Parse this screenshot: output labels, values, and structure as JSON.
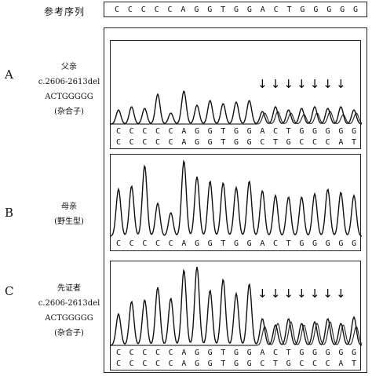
{
  "reference": {
    "label": "参考序列",
    "sequence": [
      "C",
      "C",
      "C",
      "C",
      "C",
      "A",
      "G",
      "G",
      "T",
      "G",
      "G",
      "A",
      "C",
      "T",
      "G",
      "G",
      "G",
      "G",
      "G"
    ]
  },
  "panels": [
    {
      "letter": "A",
      "title": "父亲",
      "variant": "c.2606-2613del",
      "deleted": "ACTGGGGG",
      "note": "(杂合子)",
      "arrow": "↓",
      "seq1": [
        "C",
        "C",
        "C",
        "C",
        "C",
        "A",
        "G",
        "G",
        "T",
        "G",
        "G",
        "A",
        "C",
        "T",
        "G",
        "G",
        "G",
        "G",
        "G"
      ],
      "seq2": [
        "C",
        "C",
        "C",
        "C",
        "C",
        "A",
        "G",
        "G",
        "T",
        "G",
        "G",
        "C",
        "T",
        "G",
        "C",
        "C",
        "C",
        "A",
        "T"
      ]
    },
    {
      "letter": "B",
      "title": "母亲",
      "note": "(野生型)",
      "seq1": [
        "C",
        "C",
        "C",
        "C",
        "C",
        "A",
        "G",
        "G",
        "T",
        "G",
        "G",
        "A",
        "C",
        "T",
        "G",
        "G",
        "G",
        "G",
        "G"
      ]
    },
    {
      "letter": "C",
      "title": "先证者",
      "variant": "c.2606-2613del",
      "deleted": "ACTGGGGG",
      "note": "(杂合子)",
      "arrow": "↓",
      "seq1": [
        "C",
        "C",
        "C",
        "C",
        "C",
        "A",
        "G",
        "G",
        "T",
        "G",
        "G",
        "A",
        "C",
        "T",
        "G",
        "G",
        "G",
        "G",
        "G"
      ],
      "seq2": [
        "C",
        "C",
        "C",
        "C",
        "C",
        "A",
        "G",
        "G",
        "T",
        "G",
        "G",
        "C",
        "T",
        "G",
        "C",
        "C",
        "C",
        "A",
        "T"
      ]
    }
  ]
}
